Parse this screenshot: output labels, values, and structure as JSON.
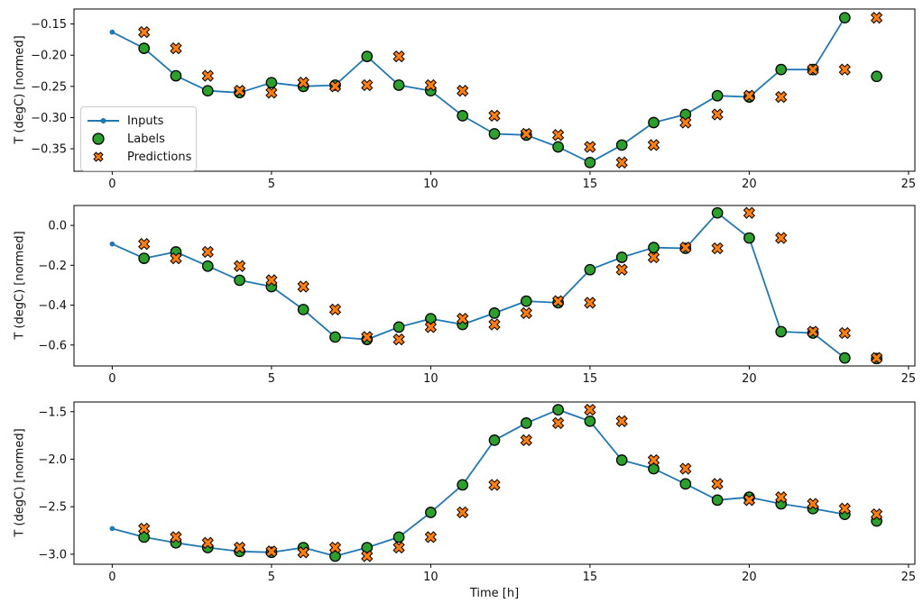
{
  "figure": {
    "xlabel": "Time [h]",
    "ylabel": "T (degC) [normed]",
    "colors": {
      "inputs": "#1f77b4",
      "labels": "#2ca02c",
      "predictions": "#ff7f0e",
      "marker_edge": "#000000",
      "axis": "#000000",
      "text": "#111111",
      "legend_border": "#cccccc"
    },
    "legend": {
      "position": "upper-left-of-top-plot",
      "items": [
        {
          "label": "Inputs",
          "marker": "line-with-dot",
          "color": "#1f77b4"
        },
        {
          "label": "Labels",
          "marker": "circle",
          "color": "#2ca02c"
        },
        {
          "label": "Predictions",
          "marker": "x",
          "color": "#ff7f0e"
        }
      ]
    }
  },
  "chart_data": [
    {
      "type": "line",
      "subplot": 1,
      "ylabel": "T (degC) [normed]",
      "xlabel": "",
      "grid": false,
      "xlim": [
        -1.2,
        25.2
      ],
      "ylim": [
        -0.386,
        -0.126
      ],
      "xticks": [
        0,
        5,
        10,
        15,
        20,
        25
      ],
      "xtick_labels": [
        "0",
        "5",
        "10",
        "15",
        "20",
        "25"
      ],
      "yticks": [
        -0.15,
        -0.2,
        -0.25,
        -0.3,
        -0.35
      ],
      "ytick_labels": [
        "−0.15",
        "−0.20",
        "−0.25",
        "−0.30",
        "−0.35"
      ],
      "series": [
        {
          "name": "Inputs",
          "type": "line",
          "x": [
            0,
            1,
            2,
            3,
            4,
            5,
            6,
            7,
            8,
            9,
            10,
            11,
            12,
            13,
            14,
            15,
            16,
            17,
            18,
            19,
            20,
            21,
            22,
            23
          ],
          "y": [
            -0.163,
            -0.189,
            -0.233,
            -0.257,
            -0.26,
            -0.244,
            -0.25,
            -0.248,
            -0.202,
            -0.248,
            -0.257,
            -0.297,
            -0.326,
            -0.328,
            -0.347,
            -0.372,
            -0.344,
            -0.308,
            -0.295,
            -0.265,
            -0.267,
            -0.223,
            -0.223,
            -0.14
          ]
        },
        {
          "name": "Labels",
          "type": "scatter-circle",
          "x": [
            1,
            2,
            3,
            4,
            5,
            6,
            7,
            8,
            9,
            10,
            11,
            12,
            13,
            14,
            15,
            16,
            17,
            18,
            19,
            20,
            21,
            22,
            23,
            24
          ],
          "y": [
            -0.189,
            -0.233,
            -0.257,
            -0.26,
            -0.244,
            -0.25,
            -0.248,
            -0.202,
            -0.248,
            -0.257,
            -0.297,
            -0.326,
            -0.328,
            -0.347,
            -0.372,
            -0.344,
            -0.308,
            -0.295,
            -0.265,
            -0.267,
            -0.223,
            -0.223,
            -0.14,
            -0.234
          ]
        },
        {
          "name": "Predictions",
          "type": "scatter-x",
          "x": [
            1,
            2,
            3,
            4,
            5,
            6,
            7,
            8,
            9,
            10,
            11,
            12,
            13,
            14,
            15,
            16,
            17,
            18,
            19,
            20,
            21,
            22,
            23,
            24
          ],
          "y": [
            -0.163,
            -0.189,
            -0.233,
            -0.257,
            -0.26,
            -0.244,
            -0.25,
            -0.248,
            -0.202,
            -0.248,
            -0.257,
            -0.297,
            -0.326,
            -0.328,
            -0.347,
            -0.372,
            -0.344,
            -0.308,
            -0.295,
            -0.265,
            -0.267,
            -0.223,
            -0.223,
            -0.14
          ]
        }
      ]
    },
    {
      "type": "line",
      "subplot": 2,
      "ylabel": "T (degC) [normed]",
      "xlabel": "",
      "grid": false,
      "xlim": [
        -1.2,
        25.2
      ],
      "ylim": [
        -0.705,
        0.1
      ],
      "xticks": [
        0,
        5,
        10,
        15,
        20,
        25
      ],
      "xtick_labels": [
        "0",
        "5",
        "10",
        "15",
        "20",
        "25"
      ],
      "yticks": [
        0.0,
        -0.2,
        -0.4,
        -0.6
      ],
      "ytick_labels": [
        "0.0",
        "−0.2",
        "−0.4",
        "−0.6"
      ],
      "series": [
        {
          "name": "Inputs",
          "type": "line",
          "x": [
            0,
            1,
            2,
            3,
            4,
            5,
            6,
            7,
            8,
            9,
            10,
            11,
            12,
            13,
            14,
            15,
            16,
            17,
            18,
            19,
            20,
            21,
            22,
            23
          ],
          "y": [
            -0.093,
            -0.165,
            -0.133,
            -0.204,
            -0.275,
            -0.307,
            -0.422,
            -0.56,
            -0.572,
            -0.51,
            -0.468,
            -0.497,
            -0.44,
            -0.38,
            -0.388,
            -0.222,
            -0.16,
            -0.111,
            -0.115,
            0.063,
            -0.063,
            -0.533,
            -0.54,
            -0.665
          ]
        },
        {
          "name": "Labels",
          "type": "scatter-circle",
          "x": [
            1,
            2,
            3,
            4,
            5,
            6,
            7,
            8,
            9,
            10,
            11,
            12,
            13,
            14,
            15,
            16,
            17,
            18,
            19,
            20,
            21,
            22,
            23,
            24
          ],
          "y": [
            -0.165,
            -0.133,
            -0.204,
            -0.275,
            -0.307,
            -0.422,
            -0.56,
            -0.572,
            -0.51,
            -0.468,
            -0.497,
            -0.44,
            -0.38,
            -0.388,
            -0.222,
            -0.16,
            -0.111,
            -0.115,
            0.063,
            -0.063,
            -0.533,
            -0.54,
            -0.665,
            -0.668
          ]
        },
        {
          "name": "Predictions",
          "type": "scatter-x",
          "x": [
            1,
            2,
            3,
            4,
            5,
            6,
            7,
            8,
            9,
            10,
            11,
            12,
            13,
            14,
            15,
            16,
            17,
            18,
            19,
            20,
            21,
            22,
            23,
            24
          ],
          "y": [
            -0.093,
            -0.165,
            -0.133,
            -0.204,
            -0.275,
            -0.307,
            -0.422,
            -0.56,
            -0.572,
            -0.51,
            -0.468,
            -0.497,
            -0.44,
            -0.38,
            -0.388,
            -0.222,
            -0.16,
            -0.111,
            -0.115,
            0.063,
            -0.063,
            -0.533,
            -0.54,
            -0.665
          ]
        }
      ]
    },
    {
      "type": "line",
      "subplot": 3,
      "ylabel": "T (degC) [normed]",
      "xlabel": "Time [h]",
      "grid": false,
      "xlim": [
        -1.2,
        25.2
      ],
      "ylim": [
        -3.105,
        -1.398
      ],
      "xticks": [
        0,
        5,
        10,
        15,
        20,
        25
      ],
      "xtick_labels": [
        "0",
        "5",
        "10",
        "15",
        "20",
        "25"
      ],
      "yticks": [
        -1.5,
        -2.0,
        -2.5,
        -3.0
      ],
      "ytick_labels": [
        "−1.5",
        "−2.0",
        "−2.5",
        "−3.0"
      ],
      "series": [
        {
          "name": "Inputs",
          "type": "line",
          "x": [
            0,
            1,
            2,
            3,
            4,
            5,
            6,
            7,
            8,
            9,
            10,
            11,
            12,
            13,
            14,
            15,
            16,
            17,
            18,
            19,
            20,
            21,
            22,
            23
          ],
          "y": [
            -2.73,
            -2.82,
            -2.88,
            -2.93,
            -2.97,
            -2.98,
            -2.93,
            -3.02,
            -2.93,
            -2.82,
            -2.56,
            -2.27,
            -1.8,
            -1.62,
            -1.48,
            -1.6,
            -2.01,
            -2.1,
            -2.26,
            -2.43,
            -2.4,
            -2.47,
            -2.52,
            -2.58
          ]
        },
        {
          "name": "Labels",
          "type": "scatter-circle",
          "x": [
            1,
            2,
            3,
            4,
            5,
            6,
            7,
            8,
            9,
            10,
            11,
            12,
            13,
            14,
            15,
            16,
            17,
            18,
            19,
            20,
            21,
            22,
            23,
            24
          ],
          "y": [
            -2.82,
            -2.88,
            -2.93,
            -2.97,
            -2.98,
            -2.93,
            -3.02,
            -2.93,
            -2.82,
            -2.56,
            -2.27,
            -1.8,
            -1.62,
            -1.48,
            -1.6,
            -2.01,
            -2.1,
            -2.26,
            -2.43,
            -2.4,
            -2.47,
            -2.52,
            -2.58,
            -2.65
          ]
        },
        {
          "name": "Predictions",
          "type": "scatter-x",
          "x": [
            1,
            2,
            3,
            4,
            5,
            6,
            7,
            8,
            9,
            10,
            11,
            12,
            13,
            14,
            15,
            16,
            17,
            18,
            19,
            20,
            21,
            22,
            23,
            24
          ],
          "y": [
            -2.73,
            -2.82,
            -2.88,
            -2.93,
            -2.97,
            -2.98,
            -2.93,
            -3.02,
            -2.93,
            -2.82,
            -2.56,
            -2.27,
            -1.8,
            -1.62,
            -1.48,
            -1.6,
            -2.01,
            -2.1,
            -2.26,
            -2.43,
            -2.4,
            -2.47,
            -2.52,
            -2.58
          ]
        }
      ]
    }
  ]
}
